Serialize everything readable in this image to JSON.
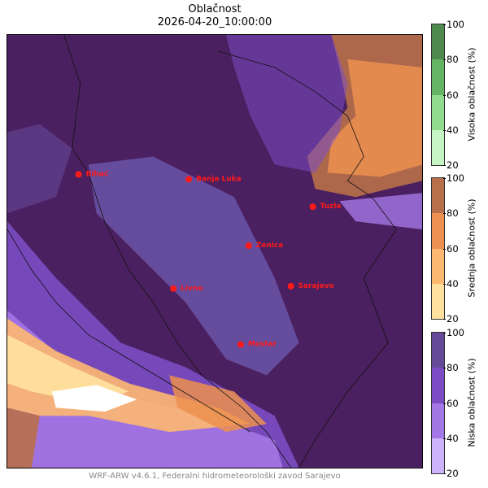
{
  "title": "Oblačnost",
  "subtitle": "2026-04-20_10:00:00",
  "footer": "WRF-ARW v4.6.1, Federalni hidrometeorološki zavod Sarajevo",
  "colorbars": [
    {
      "label": "Visoka oblačnost (%)",
      "ticks": [
        "100",
        "80",
        "60",
        "40",
        "20"
      ],
      "colors": [
        "#4e8a4e",
        "#63b463",
        "#8fdc8f",
        "#c5f5c5"
      ]
    },
    {
      "label": "Srednja oblačnost (%)",
      "ticks": [
        "100",
        "80",
        "60",
        "40",
        "20"
      ],
      "colors": [
        "#b8704a",
        "#ec914f",
        "#fdb870",
        "#ffe09e"
      ]
    },
    {
      "label": "Niska oblačnost (%)",
      "ticks": [
        "100",
        "80",
        "60",
        "40",
        "20"
      ],
      "colors": [
        "#654a9a",
        "#7c4cc4",
        "#a477e6",
        "#ccb3fb"
      ]
    }
  ],
  "cities": [
    {
      "name": "Bihać"
    },
    {
      "name": "Banja Luka"
    },
    {
      "name": "Tuzla"
    },
    {
      "name": "Zenica"
    },
    {
      "name": "Livno"
    },
    {
      "name": "Sarajevo"
    },
    {
      "name": "Mostar"
    }
  ],
  "colors": {
    "city_marker": "#ff1a1a",
    "base": "#4b2060"
  }
}
